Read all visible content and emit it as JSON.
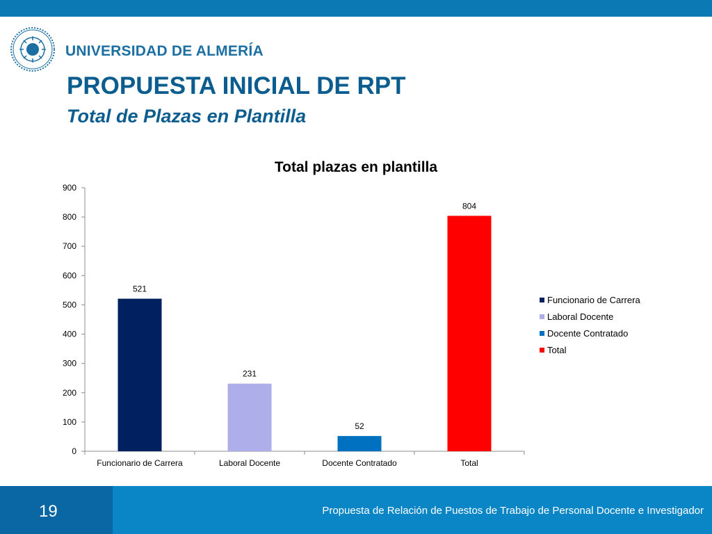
{
  "header": {
    "university_name": "UNIVERSIDAD DE ALMERÍA",
    "title": "PROPUESTA INICIAL DE RPT",
    "subtitle": "Total de Plazas en Plantilla"
  },
  "chart_data": {
    "type": "bar",
    "title": "Total plazas en plantilla",
    "categories": [
      "Funcionario de Carrera",
      "Laboral Docente",
      "Docente Contratado",
      "Total"
    ],
    "values": [
      521,
      231,
      52,
      804
    ],
    "colors": [
      "#002060",
      "#aeaeea",
      "#0070c0",
      "#ff0000"
    ],
    "legend": [
      "Funcionario de Carrera",
      "Laboral Docente",
      "Docente Contratado",
      "Total"
    ],
    "legend_position": "right",
    "ylim": [
      0,
      900
    ],
    "yticks": [
      0,
      100,
      200,
      300,
      400,
      500,
      600,
      700,
      800,
      900
    ],
    "grid": false,
    "xlabel": "",
    "ylabel": ""
  },
  "footer": {
    "page_number": "19",
    "text": "Propuesta de Relación de Puestos de Trabajo de Personal Docente e Investigador"
  }
}
